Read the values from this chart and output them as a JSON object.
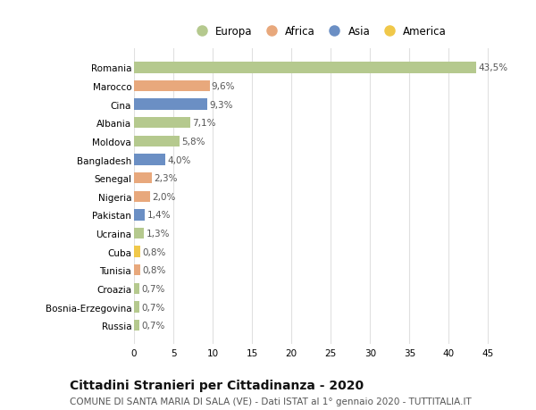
{
  "countries": [
    "Romania",
    "Marocco",
    "Cina",
    "Albania",
    "Moldova",
    "Bangladesh",
    "Senegal",
    "Nigeria",
    "Pakistan",
    "Ucraina",
    "Cuba",
    "Tunisia",
    "Croazia",
    "Bosnia-Erzegovina",
    "Russia"
  ],
  "values": [
    43.5,
    9.6,
    9.3,
    7.1,
    5.8,
    4.0,
    2.3,
    2.0,
    1.4,
    1.3,
    0.8,
    0.8,
    0.7,
    0.7,
    0.7
  ],
  "labels": [
    "43,5%",
    "9,6%",
    "9,3%",
    "7,1%",
    "5,8%",
    "4,0%",
    "2,3%",
    "2,0%",
    "1,4%",
    "1,3%",
    "0,8%",
    "0,8%",
    "0,7%",
    "0,7%",
    "0,7%"
  ],
  "continents": [
    "Europa",
    "Africa",
    "Asia",
    "Europa",
    "Europa",
    "Asia",
    "Africa",
    "Africa",
    "Asia",
    "Europa",
    "America",
    "Africa",
    "Europa",
    "Europa",
    "Europa"
  ],
  "continent_colors": {
    "Europa": "#b5c98e",
    "Africa": "#e8a87c",
    "Asia": "#6b8fc4",
    "America": "#f0c84a"
  },
  "legend_order": [
    "Europa",
    "Africa",
    "Asia",
    "America"
  ],
  "title": "Cittadini Stranieri per Cittadinanza - 2020",
  "subtitle": "COMUNE DI SANTA MARIA DI SALA (VE) - Dati ISTAT al 1° gennaio 2020 - TUTTITALIA.IT",
  "xlim": [
    0,
    47
  ],
  "xticks": [
    0,
    5,
    10,
    15,
    20,
    25,
    30,
    35,
    40,
    45
  ],
  "background_color": "#ffffff",
  "grid_color": "#e0e0e0",
  "bar_height": 0.6,
  "label_fontsize": 7.5,
  "title_fontsize": 10,
  "subtitle_fontsize": 7.5,
  "tick_fontsize": 7.5,
  "legend_fontsize": 8.5
}
